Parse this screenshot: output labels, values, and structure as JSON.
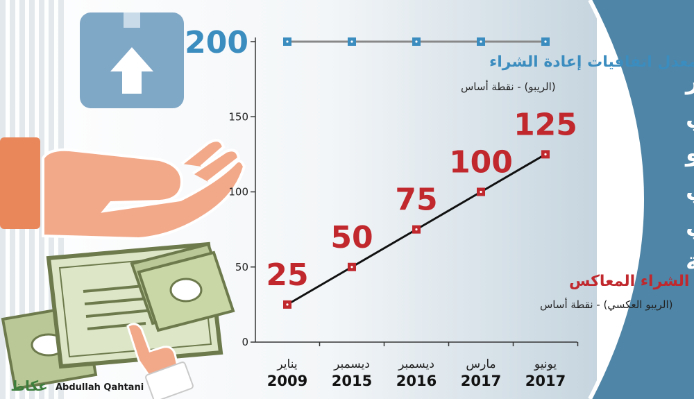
{
  "panel_title": {
    "lines": [
      "التطور",
      "التاريخي",
      "للريبو",
      "العكسي",
      "والريبو في",
      "السعودية"
    ]
  },
  "credit": {
    "logo_text": "عكاظ",
    "author": "Abdullah Qahtani"
  },
  "colors": {
    "panel": "#4f85a6",
    "repo_series": "#3b8cbf",
    "reverse_series": "#c0282d",
    "repo_line": "#888888",
    "reverse_line": "#111111"
  },
  "chart_data": {
    "type": "line",
    "categories": [
      {
        "month": "يناير",
        "year": "2009"
      },
      {
        "month": "ديسمبر",
        "year": "2015"
      },
      {
        "month": "ديسمبر",
        "year": "2016"
      },
      {
        "month": "مارس",
        "year": "2017"
      },
      {
        "month": "يونيو",
        "year": "2017"
      }
    ],
    "y_ticks": [
      "0",
      "50",
      "100",
      "150"
    ],
    "top_label": "200",
    "ylim": [
      0,
      200
    ],
    "series": [
      {
        "name": "معدل اتفاقيات إعادة الشراء",
        "note": "(الريبو) - نقطة أساس",
        "values": [
          200,
          200,
          200,
          200,
          200
        ]
      },
      {
        "name": "معدل اتفاقيات إعادة الشراء المعاكس",
        "note": "(الريبو العكسي) - نقطة أساس",
        "values": [
          25,
          50,
          75,
          100,
          125
        ],
        "labels": [
          "25",
          "50",
          "75",
          "100",
          "125"
        ]
      }
    ]
  }
}
